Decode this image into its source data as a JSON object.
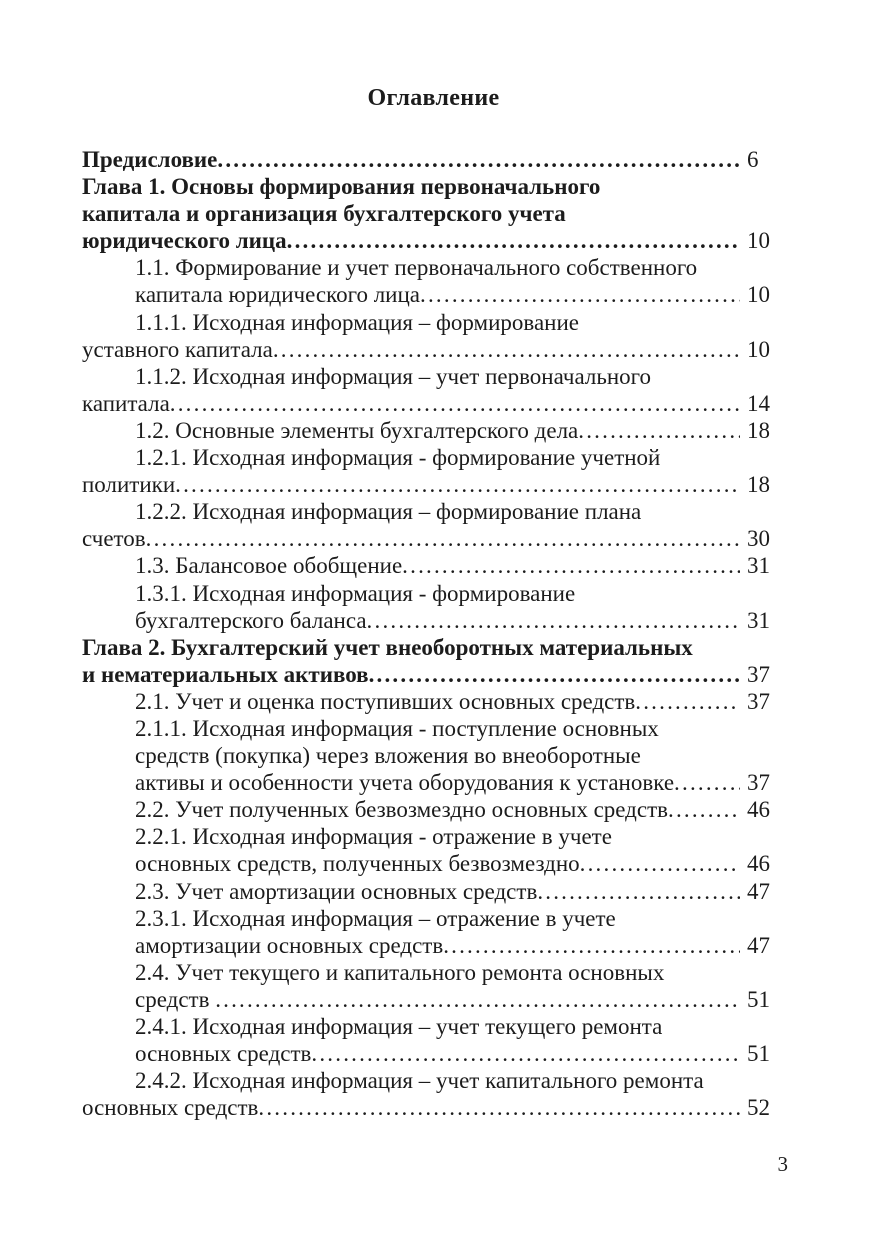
{
  "page": {
    "title": "Оглавление",
    "page_number": "3"
  },
  "toc": {
    "lines": [
      {
        "text": "Предисловие",
        "bold": true,
        "indent": 0,
        "page": "6"
      },
      {
        "text": "Глава 1. Основы формирования первоначального",
        "bold": true,
        "indent": 0
      },
      {
        "text": "капитала и организация бухгалтерского учета",
        "bold": true,
        "indent": 0
      },
      {
        "text": "юридического лица",
        "bold": true,
        "indent": 0,
        "page": "10"
      },
      {
        "text": "1.1. Формирование и учет первоначального собственного",
        "indent": 1
      },
      {
        "text": "капитала юридического лица",
        "indent": 1,
        "page": "10"
      },
      {
        "text": "1.1.1. Исходная информация – формирование",
        "indent": 1
      },
      {
        "text": "уставного капитала",
        "indent": 0,
        "page": "10"
      },
      {
        "text": "1.1.2. Исходная информация – учет первоначального",
        "indent": 1
      },
      {
        "text": "капитала",
        "indent": 0,
        "page": "14"
      },
      {
        "text": "1.2. Основные элементы бухгалтерского дела",
        "indent": 1,
        "page": "18"
      },
      {
        "text": "1.2.1. Исходная информация - формирование учетной",
        "indent": 1
      },
      {
        "text": "политики",
        "indent": 0,
        "page": "18"
      },
      {
        "text": "1.2.2. Исходная информация – формирование плана",
        "indent": 1
      },
      {
        "text": "счетов",
        "indent": 0,
        "page": "30"
      },
      {
        "text": "1.3. Балансовое обобщение",
        "indent": 1,
        "page": "31"
      },
      {
        "text": "1.3.1. Исходная информация - формирование",
        "indent": 1
      },
      {
        "text": "бухгалтерского баланса",
        "indent": 1,
        "page": "31"
      },
      {
        "text": "Глава 2. Бухгалтерский учет внеоборотных материальных",
        "bold": true,
        "indent": 0
      },
      {
        "text": "и нематериальных активов",
        "bold": true,
        "indent": 0,
        "page": "37"
      },
      {
        "text": "2.1. Учет и оценка поступивших основных средств",
        "indent": 1,
        "page": "37"
      },
      {
        "text": "2.1.1. Исходная информация - поступление основных",
        "indent": 1
      },
      {
        "text": "средств (покупка) через вложения во внеоборотные",
        "indent": 1
      },
      {
        "text": "активы и особенности учета оборудования к установке",
        "indent": 1,
        "page": "37"
      },
      {
        "text": "2.2. Учет полученных безвозмездно основных средств",
        "indent": 1,
        "page": "46"
      },
      {
        "text": "2.2.1. Исходная информация - отражение в учете",
        "indent": 1
      },
      {
        "text": "основных средств, полученных безвозмездно",
        "indent": 1,
        "page": "46"
      },
      {
        "text": "2.3. Учет амортизации основных средств",
        "indent": 1,
        "page": "47"
      },
      {
        "text": "2.3.1. Исходная информация – отражение в учете",
        "indent": 1
      },
      {
        "text": "амортизации основных средств",
        "indent": 1,
        "page": "47"
      },
      {
        "text": "2.4. Учет текущего и капитального ремонта основных",
        "indent": 1
      },
      {
        "text": "средств ",
        "indent": 1,
        "page": "51"
      },
      {
        "text": "2.4.1. Исходная информация – учет текущего ремонта",
        "indent": 1
      },
      {
        "text": "основных средств",
        "indent": 1,
        "page": "51"
      },
      {
        "text": "2.4.2. Исходная информация – учет капитального ремонта",
        "indent": 1
      },
      {
        "text": "основных средств",
        "indent": 0,
        "page": "52"
      }
    ]
  }
}
